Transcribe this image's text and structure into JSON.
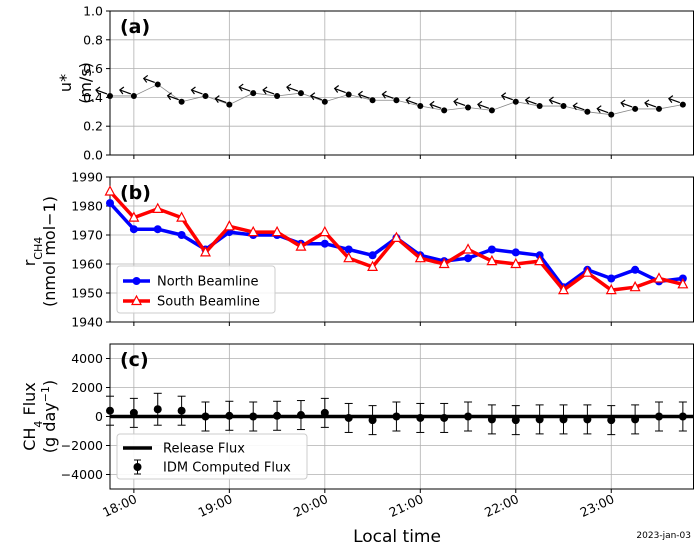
{
  "figure": {
    "xlabel": "Local time",
    "date_label": "2023-jan-03"
  },
  "chart_data": [
    {
      "panel": "(a)",
      "type": "line",
      "ylabel_line1": "u*",
      "ylabel_line2": "(m/s)",
      "ylim": [
        0.0,
        1.0
      ],
      "yticks": [
        "0.0",
        "0.2",
        "0.4",
        "0.6",
        "0.8",
        "1.0"
      ],
      "ytick_values": [
        0.0,
        0.2,
        0.4,
        0.6,
        0.8,
        1.0
      ],
      "grid": true,
      "x": [
        "17:45",
        "18:00",
        "18:15",
        "18:30",
        "18:45",
        "19:00",
        "19:15",
        "19:30",
        "19:45",
        "20:00",
        "20:15",
        "20:30",
        "20:45",
        "21:00",
        "21:15",
        "21:30",
        "21:45",
        "22:00",
        "22:15",
        "22:30",
        "22:45",
        "23:00",
        "23:15",
        "23:30",
        "23:45"
      ],
      "values": [
        0.41,
        0.41,
        0.49,
        0.37,
        0.41,
        0.35,
        0.43,
        0.41,
        0.43,
        0.37,
        0.42,
        0.38,
        0.38,
        0.34,
        0.31,
        0.33,
        0.31,
        0.37,
        0.34,
        0.34,
        0.3,
        0.28,
        0.32,
        0.32,
        0.35
      ],
      "wind_arrows": true
    },
    {
      "panel": "(b)",
      "type": "line",
      "ylabel_line1": "r_CH4",
      "ylabel_line2": "(nmol mol−1)",
      "ylim": [
        1940,
        1990
      ],
      "yticks": [
        "1940",
        "1950",
        "1960",
        "1970",
        "1980",
        "1990"
      ],
      "ytick_values": [
        1940,
        1950,
        1960,
        1970,
        1980,
        1990
      ],
      "grid": true,
      "legend_position": "lower-left",
      "x": [
        "17:45",
        "18:00",
        "18:15",
        "18:30",
        "18:45",
        "19:00",
        "19:15",
        "19:30",
        "19:45",
        "20:00",
        "20:15",
        "20:30",
        "20:45",
        "21:00",
        "21:15",
        "21:30",
        "21:45",
        "22:00",
        "22:15",
        "22:30",
        "22:45",
        "23:00",
        "23:15",
        "23:30",
        "23:45"
      ],
      "series": [
        {
          "name": "North Beamline",
          "color": "#0000ff",
          "marker": "circle",
          "values": [
            1981,
            1972,
            1972,
            1970,
            1965,
            1971,
            1970,
            1970,
            1967,
            1967,
            1965,
            1963,
            1969,
            1963,
            1961,
            1962,
            1965,
            1964,
            1963,
            1952,
            1958,
            1955,
            1958,
            1954,
            1955
          ]
        },
        {
          "name": "South Beamline",
          "color": "#ff0000",
          "marker": "triangle",
          "values": [
            1985,
            1976,
            1979,
            1976,
            1964,
            1973,
            1971,
            1971,
            1966,
            1971,
            1962,
            1959,
            1969,
            1962,
            1960,
            1965,
            1961,
            1960,
            1961,
            1951,
            1957,
            1951,
            1952,
            1955,
            1953
          ]
        }
      ]
    },
    {
      "panel": "(c)",
      "type": "scatter",
      "ylabel_line1": "CH4 Flux",
      "ylabel_line2": "(g day−1)",
      "ylim": [
        -5000,
        5000
      ],
      "yticks": [
        "−4000",
        "−2000",
        "0",
        "2000",
        "4000"
      ],
      "ytick_values": [
        -4000,
        -2000,
        0,
        2000,
        4000
      ],
      "grid": true,
      "legend_position": "lower-left",
      "release_flux": {
        "name": "Release Flux",
        "value": 0,
        "color": "#000000"
      },
      "computed": {
        "name": "IDM Computed Flux",
        "x": [
          "17:45",
          "18:00",
          "18:15",
          "18:30",
          "18:45",
          "19:00",
          "19:15",
          "19:30",
          "19:45",
          "20:00",
          "20:15",
          "20:30",
          "20:45",
          "21:00",
          "21:15",
          "21:30",
          "21:45",
          "22:00",
          "22:15",
          "22:30",
          "22:45",
          "23:00",
          "23:15",
          "23:30",
          "23:45"
        ],
        "values": [
          400,
          250,
          500,
          400,
          0,
          50,
          0,
          50,
          100,
          250,
          -100,
          -250,
          0,
          -100,
          -100,
          0,
          -200,
          -250,
          -200,
          -200,
          -200,
          -250,
          -200,
          0,
          0
        ],
        "errors": [
          1000,
          1000,
          1100,
          1000,
          1000,
          1000,
          1000,
          1000,
          1000,
          1000,
          1000,
          1000,
          1000,
          1000,
          1000,
          1000,
          1000,
          1000,
          1000,
          1000,
          1000,
          1000,
          1000,
          1000,
          1000
        ]
      }
    }
  ],
  "xaxis": {
    "tick_labels": [
      "18:00",
      "19:00",
      "20:00",
      "21:00",
      "22:00",
      "23:00"
    ],
    "tick_values": [
      "18:00",
      "19:00",
      "20:00",
      "21:00",
      "22:00",
      "23:00"
    ],
    "range": [
      "17:45",
      "23:52"
    ]
  }
}
